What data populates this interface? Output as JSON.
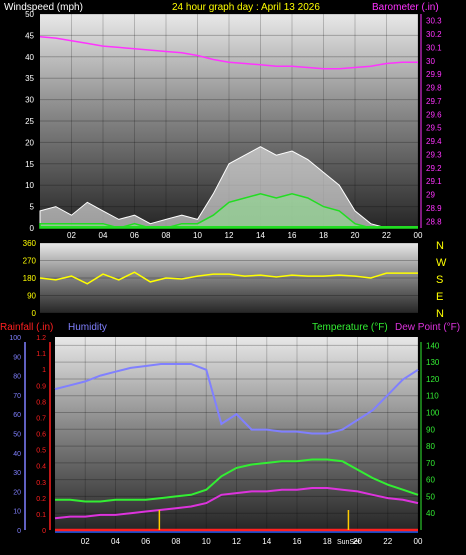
{
  "header": {
    "wind_label": "Windspeed (mph)",
    "title": "24 hour graph day : April 13 2026",
    "baro_label": "Barometer (.in)",
    "rain_label": "Rainfall (.in)",
    "hum_label": "Humidity",
    "temp_label": "Temperature (°F)",
    "dew_label": "Dew Point (°F)",
    "sun_label": "SunSet",
    "compass": [
      "N",
      "W",
      "S",
      "E",
      "N"
    ]
  },
  "colors": {
    "wind_label": "#ffffff",
    "title": "#ffff00",
    "baro": "#ff33ff",
    "rain": "#ff2020",
    "humidity": "#8080ff",
    "temperature": "#33ee33",
    "dew": "#dd33dd",
    "wind_dir": "#ffff00",
    "gust": "#ffffff",
    "wind_avg": "#22dd22",
    "axis_left_bottom": "#2060ff"
  },
  "chart_data": [
    {
      "type": "line",
      "title": "24 hour graph day : April 13 2026",
      "x_ticks": [
        "02",
        "04",
        "06",
        "08",
        "10",
        "12",
        "14",
        "16",
        "18",
        "20",
        "22",
        "00"
      ],
      "ylabel": "Windspeed (mph)",
      "y_ticks": [
        "0",
        "5",
        "10",
        "15",
        "20",
        "25",
        "30",
        "35",
        "40",
        "45",
        "50"
      ],
      "ylim": [
        0,
        50
      ],
      "y2label": "Barometer (.in)",
      "y2_ticks": [
        "28.8",
        "28.9",
        "29",
        "29.1",
        "29.2",
        "29.3",
        "29.4",
        "29.5",
        "29.6",
        "29.7",
        "29.8",
        "29.9",
        "30",
        "30.1",
        "30.2",
        "30.3"
      ],
      "y2lim": [
        28.75,
        30.35
      ],
      "series": [
        {
          "name": "Barometer (.in)",
          "axis": "right",
          "x": [
            0,
            1,
            2,
            3,
            4,
            5,
            6,
            7,
            8,
            9,
            10,
            11,
            12,
            13,
            14,
            15,
            16,
            17,
            18,
            19,
            20,
            21,
            22,
            23,
            24
          ],
          "values": [
            30.18,
            30.17,
            30.15,
            30.13,
            30.11,
            30.1,
            30.09,
            30.08,
            30.07,
            30.06,
            30.04,
            30.01,
            29.99,
            29.98,
            29.97,
            29.96,
            29.96,
            29.95,
            29.94,
            29.94,
            29.95,
            29.96,
            29.98,
            29.99,
            29.99
          ]
        },
        {
          "name": "Wind gust",
          "axis": "left",
          "x": [
            0,
            1,
            2,
            3,
            4,
            5,
            6,
            7,
            8,
            9,
            10,
            11,
            12,
            13,
            14,
            15,
            16,
            17,
            18,
            19,
            20,
            21,
            22,
            23,
            24
          ],
          "values": [
            4,
            5,
            3,
            6,
            4,
            2,
            3,
            1,
            2,
            3,
            2,
            8,
            15,
            17,
            19,
            17,
            18,
            16,
            13,
            10,
            4,
            1,
            0,
            0,
            0
          ]
        },
        {
          "name": "Wind average",
          "axis": "left",
          "x": [
            0,
            1,
            2,
            3,
            4,
            5,
            6,
            7,
            8,
            9,
            10,
            11,
            12,
            13,
            14,
            15,
            16,
            17,
            18,
            19,
            20,
            21,
            22,
            23,
            24
          ],
          "values": [
            1,
            1,
            1,
            1,
            1,
            0,
            1,
            0,
            0,
            1,
            1,
            3,
            6,
            7,
            8,
            7,
            8,
            7,
            5,
            4,
            1,
            0,
            0,
            0,
            0
          ]
        }
      ]
    },
    {
      "type": "line",
      "y_ticks": [
        "360",
        "270",
        "180",
        "90",
        "0"
      ],
      "ylim": [
        0,
        360
      ],
      "series": [
        {
          "name": "Wind direction",
          "x": [
            0,
            1,
            2,
            3,
            4,
            5,
            6,
            7,
            8,
            9,
            10,
            11,
            12,
            13,
            14,
            15,
            16,
            17,
            18,
            19,
            20,
            21,
            22,
            23,
            24
          ],
          "values": [
            180,
            170,
            190,
            150,
            200,
            170,
            210,
            160,
            180,
            175,
            190,
            200,
            200,
            190,
            195,
            185,
            195,
            190,
            190,
            195,
            190,
            180,
            205,
            205,
            205
          ]
        }
      ]
    },
    {
      "type": "line",
      "x_ticks": [
        "02",
        "04",
        "06",
        "08",
        "10",
        "12",
        "14",
        "16",
        "18",
        "20",
        "22",
        "00"
      ],
      "ylabel": "Rainfall (.in)",
      "rain_ticks": [
        "0",
        "0.1",
        "0.2",
        "0.3",
        "0.4",
        "0.5",
        "0.6",
        "0.7",
        "0.8",
        "0.9",
        "1",
        "1.1",
        "1.2"
      ],
      "rain_lim": [
        0,
        1.2
      ],
      "humidity_ticks": [
        "0",
        "10",
        "20",
        "30",
        "40",
        "50",
        "60",
        "70",
        "80",
        "90",
        "100"
      ],
      "humidity_lim": [
        0,
        100
      ],
      "y2label": "Temperature (°F)",
      "y2_ticks": [
        "40",
        "50",
        "60",
        "70",
        "80",
        "90",
        "100",
        "110",
        "120",
        "130",
        "140"
      ],
      "y2lim": [
        30,
        145
      ],
      "series": [
        {
          "name": "Humidity",
          "axis": "humidity",
          "x": [
            0,
            1,
            2,
            3,
            4,
            5,
            6,
            7,
            8,
            9,
            10,
            11,
            12,
            13,
            14,
            15,
            16,
            17,
            18,
            19,
            20,
            21,
            22,
            23,
            24
          ],
          "values": [
            73,
            75,
            77,
            80,
            82,
            84,
            85,
            86,
            86,
            86,
            83,
            55,
            60,
            52,
            52,
            51,
            51,
            50,
            50,
            52,
            57,
            62,
            70,
            78,
            83
          ]
        },
        {
          "name": "Temperature (°F)",
          "axis": "right",
          "x": [
            0,
            1,
            2,
            3,
            4,
            5,
            6,
            7,
            8,
            9,
            10,
            11,
            12,
            13,
            14,
            15,
            16,
            17,
            18,
            19,
            20,
            21,
            22,
            23,
            24
          ],
          "values": [
            48,
            48,
            47,
            47,
            48,
            48,
            48,
            49,
            50,
            51,
            54,
            62,
            67,
            69,
            70,
            71,
            71,
            72,
            72,
            71,
            66,
            61,
            57,
            54,
            51
          ]
        },
        {
          "name": "Dew Point (°F)",
          "axis": "right",
          "x": [
            0,
            1,
            2,
            3,
            4,
            5,
            6,
            7,
            8,
            9,
            10,
            11,
            12,
            13,
            14,
            15,
            16,
            17,
            18,
            19,
            20,
            21,
            22,
            23,
            24
          ],
          "values": [
            37,
            38,
            38,
            39,
            39,
            40,
            41,
            42,
            43,
            44,
            46,
            51,
            52,
            53,
            53,
            54,
            54,
            55,
            55,
            54,
            53,
            51,
            49,
            48,
            46
          ]
        },
        {
          "name": "Rainfall (.in)",
          "axis": "rain",
          "x": [
            0,
            24
          ],
          "values": [
            0,
            0
          ]
        }
      ],
      "markers": [
        {
          "label": "",
          "x": 6.9
        },
        {
          "label": "SunSet",
          "x": 19.4
        }
      ]
    }
  ]
}
